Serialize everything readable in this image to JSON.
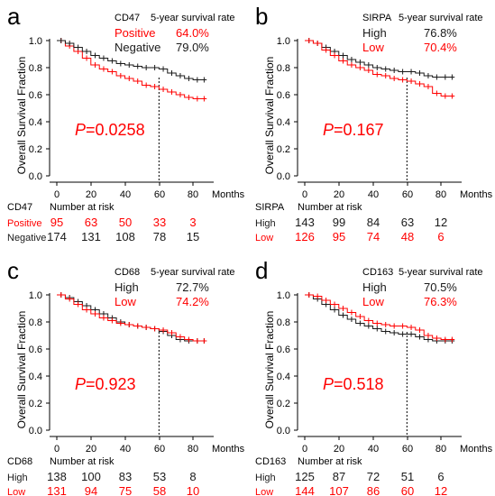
{
  "colors": {
    "series_a": "#1a1a1a",
    "series_b": "#ff0000",
    "axis": "#000000"
  },
  "common": {
    "ylabel": "Overall Survival Fraction",
    "x_unit": "Months",
    "risk_title": "Number at risk",
    "x_ticks": [
      0,
      20,
      40,
      60,
      80
    ],
    "y_ticks": [
      "0.0",
      "0.2",
      "0.4",
      "0.6",
      "0.8",
      "1.0"
    ],
    "cutoff_month": 60
  },
  "chart_data": [
    {
      "type": "line",
      "panel": "a",
      "marker": "CD47",
      "legend_title": "5-year survival rate",
      "xlim": [
        0,
        90
      ],
      "ylim": [
        0,
        1
      ],
      "p_value": "=0.0258",
      "series": [
        {
          "name": "Positive",
          "rate": "64.0%",
          "color": "#ff0000",
          "risk": [
            "95",
            "63",
            "50",
            "33",
            "3"
          ],
          "x": [
            0,
            5,
            10,
            15,
            20,
            25,
            30,
            35,
            40,
            45,
            50,
            55,
            60,
            65,
            70,
            75,
            80,
            85,
            88
          ],
          "y": [
            1.0,
            0.96,
            0.92,
            0.87,
            0.82,
            0.79,
            0.77,
            0.74,
            0.72,
            0.7,
            0.67,
            0.66,
            0.64,
            0.62,
            0.6,
            0.58,
            0.57,
            0.57,
            0.57
          ]
        },
        {
          "name": "Negative",
          "rate": "79.0%",
          "color": "#1a1a1a",
          "risk": [
            "174",
            "131",
            "108",
            "78",
            "15"
          ],
          "x": [
            0,
            5,
            10,
            15,
            20,
            25,
            30,
            35,
            40,
            45,
            50,
            55,
            60,
            65,
            70,
            75,
            80,
            85,
            88
          ],
          "y": [
            1.0,
            0.98,
            0.95,
            0.92,
            0.89,
            0.87,
            0.85,
            0.83,
            0.82,
            0.81,
            0.8,
            0.8,
            0.79,
            0.76,
            0.74,
            0.72,
            0.71,
            0.71,
            0.71
          ]
        }
      ]
    },
    {
      "type": "line",
      "panel": "b",
      "marker": "SIRPA",
      "legend_title": "5-year survival rate",
      "xlim": [
        0,
        90
      ],
      "ylim": [
        0,
        1
      ],
      "p_value": "=0.167",
      "series": [
        {
          "name": "High",
          "rate": "76.8%",
          "color": "#1a1a1a",
          "risk": [
            "143",
            "99",
            "84",
            "63",
            "12"
          ],
          "x": [
            0,
            5,
            10,
            15,
            20,
            25,
            30,
            35,
            40,
            45,
            50,
            55,
            60,
            65,
            70,
            75,
            80,
            85,
            88
          ],
          "y": [
            1.0,
            0.98,
            0.95,
            0.92,
            0.89,
            0.86,
            0.84,
            0.82,
            0.8,
            0.79,
            0.78,
            0.77,
            0.77,
            0.76,
            0.74,
            0.73,
            0.73,
            0.73,
            0.73
          ]
        },
        {
          "name": "Low",
          "rate": "70.4%",
          "color": "#ff0000",
          "risk": [
            "126",
            "95",
            "74",
            "48",
            "6"
          ],
          "x": [
            0,
            5,
            10,
            15,
            20,
            25,
            30,
            35,
            40,
            45,
            50,
            55,
            60,
            65,
            70,
            75,
            80,
            85,
            88
          ],
          "y": [
            1.0,
            0.98,
            0.93,
            0.89,
            0.85,
            0.82,
            0.8,
            0.78,
            0.75,
            0.74,
            0.72,
            0.71,
            0.7,
            0.68,
            0.66,
            0.61,
            0.59,
            0.59,
            0.59
          ]
        }
      ]
    },
    {
      "type": "line",
      "panel": "c",
      "marker": "CD68",
      "legend_title": "5-year survival rate",
      "xlim": [
        0,
        90
      ],
      "ylim": [
        0,
        1
      ],
      "p_value": "=0.923",
      "series": [
        {
          "name": "High",
          "rate": "72.7%",
          "color": "#1a1a1a",
          "risk": [
            "138",
            "100",
            "83",
            "53",
            "8"
          ],
          "x": [
            0,
            5,
            10,
            15,
            20,
            25,
            30,
            35,
            40,
            45,
            50,
            55,
            60,
            65,
            70,
            75,
            80,
            85,
            88
          ],
          "y": [
            1.0,
            0.98,
            0.95,
            0.92,
            0.89,
            0.86,
            0.83,
            0.8,
            0.78,
            0.77,
            0.76,
            0.75,
            0.73,
            0.7,
            0.67,
            0.66,
            0.66,
            0.66,
            0.66
          ]
        },
        {
          "name": "Low",
          "rate": "74.2%",
          "color": "#ff0000",
          "risk": [
            "131",
            "94",
            "75",
            "58",
            "10"
          ],
          "x": [
            0,
            5,
            10,
            15,
            20,
            25,
            30,
            35,
            40,
            45,
            50,
            55,
            60,
            65,
            70,
            75,
            80,
            85,
            88
          ],
          "y": [
            1.0,
            0.97,
            0.93,
            0.89,
            0.86,
            0.83,
            0.81,
            0.79,
            0.78,
            0.77,
            0.76,
            0.75,
            0.74,
            0.72,
            0.69,
            0.67,
            0.66,
            0.66,
            0.66
          ]
        }
      ]
    },
    {
      "type": "line",
      "panel": "d",
      "marker": "CD163",
      "legend_title": "5-year survival rate",
      "xlim": [
        0,
        90
      ],
      "ylim": [
        0,
        1
      ],
      "p_value": "=0.518",
      "series": [
        {
          "name": "High",
          "rate": "70.5%",
          "color": "#1a1a1a",
          "risk": [
            "125",
            "87",
            "72",
            "51",
            "6"
          ],
          "x": [
            0,
            5,
            10,
            15,
            20,
            25,
            30,
            35,
            40,
            45,
            50,
            55,
            60,
            65,
            70,
            75,
            80,
            85,
            88
          ],
          "y": [
            1.0,
            0.97,
            0.93,
            0.89,
            0.85,
            0.82,
            0.79,
            0.77,
            0.75,
            0.73,
            0.72,
            0.71,
            0.71,
            0.69,
            0.67,
            0.66,
            0.66,
            0.66,
            0.66
          ]
        },
        {
          "name": "Low",
          "rate": "76.3%",
          "color": "#ff0000",
          "risk": [
            "144",
            "107",
            "86",
            "60",
            "12"
          ],
          "x": [
            0,
            5,
            10,
            15,
            20,
            25,
            30,
            35,
            40,
            45,
            50,
            55,
            60,
            65,
            70,
            75,
            80,
            85,
            88
          ],
          "y": [
            1.0,
            0.99,
            0.96,
            0.93,
            0.9,
            0.87,
            0.84,
            0.81,
            0.79,
            0.78,
            0.77,
            0.77,
            0.76,
            0.74,
            0.7,
            0.68,
            0.67,
            0.67,
            0.67
          ]
        }
      ]
    }
  ]
}
